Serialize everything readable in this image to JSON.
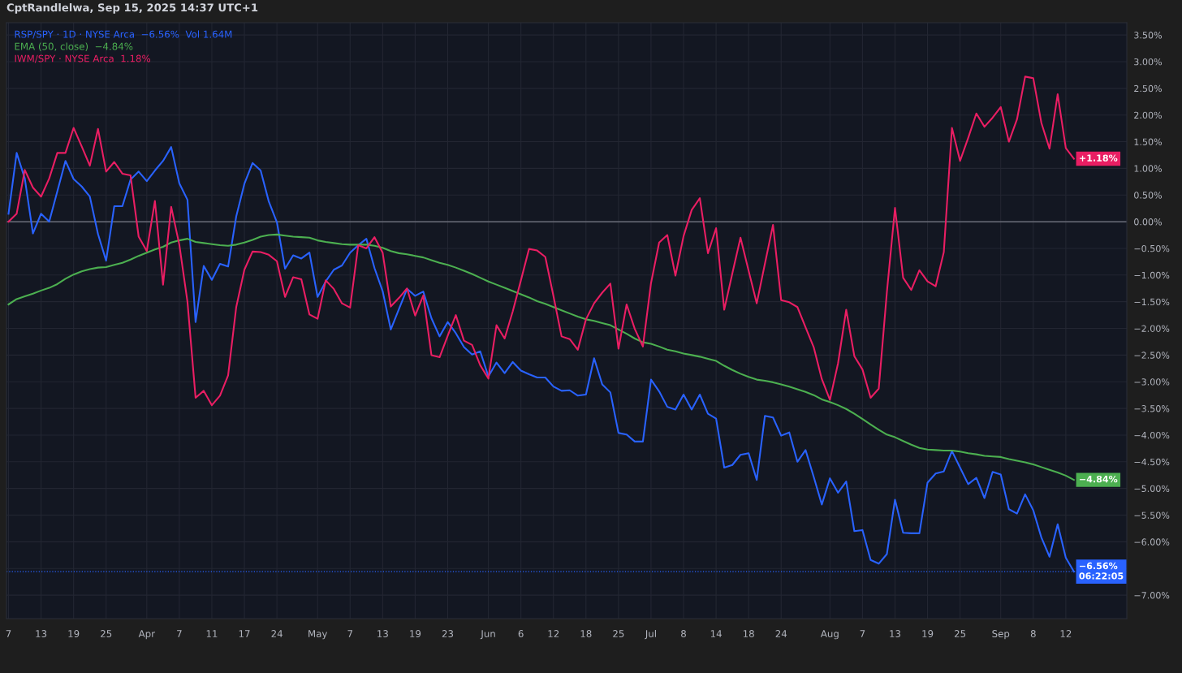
{
  "chart_data": {
    "type": "line",
    "title": "CptRandlelwa, Sep 15, 2025 14:37 UTC+1",
    "categories": [
      "7",
      null,
      null,
      null,
      "13",
      null,
      null,
      null,
      "19",
      null,
      null,
      null,
      "25",
      null,
      null,
      null,
      null,
      "Apr",
      null,
      null,
      null,
      "7",
      null,
      null,
      null,
      "11",
      null,
      null,
      null,
      "17",
      null,
      null,
      null,
      "24",
      null,
      null,
      null,
      null,
      "May",
      null,
      null,
      null,
      "7",
      null,
      null,
      null,
      "13",
      null,
      null,
      null,
      "19",
      null,
      null,
      null,
      "23",
      null,
      null,
      null,
      null,
      "Jun",
      null,
      null,
      null,
      "6",
      null,
      null,
      null,
      "12",
      null,
      null,
      null,
      "18",
      null,
      null,
      null,
      "25",
      null,
      null,
      null,
      "Jul",
      null,
      null,
      null,
      "8",
      null,
      null,
      null,
      "14",
      null,
      null,
      null,
      "18",
      null,
      null,
      null,
      "24",
      null,
      null,
      null,
      null,
      null,
      "Aug",
      null,
      null,
      null,
      "7",
      null,
      null,
      null,
      "13",
      null,
      null,
      null,
      "19",
      null,
      null,
      null,
      "25",
      null,
      null,
      null,
      null,
      "Sep",
      null,
      null,
      null,
      "8",
      null,
      null,
      null,
      "12",
      null
    ],
    "ylim": [
      -7.44,
      3.73
    ],
    "yticks": [
      {
        "value": 3.5,
        "label": "3.50%"
      },
      {
        "value": 3.0,
        "label": "3.00%"
      },
      {
        "value": 2.5,
        "label": "2.50%"
      },
      {
        "value": 2.0,
        "label": "2.00%"
      },
      {
        "value": 1.5,
        "label": "1.50%"
      },
      {
        "value": 1.0,
        "label": "1.00%"
      },
      {
        "value": 0.5,
        "label": "0.50%"
      },
      {
        "value": 0,
        "label": "0.00%"
      },
      {
        "value": -0.5,
        "label": "−0.50%"
      },
      {
        "value": -1.0,
        "label": "−1.00%"
      },
      {
        "value": -1.5,
        "label": "−1.50%"
      },
      {
        "value": -2.0,
        "label": "−2.00%"
      },
      {
        "value": -2.5,
        "label": "−2.50%"
      },
      {
        "value": -3.0,
        "label": "−3.00%"
      },
      {
        "value": -3.5,
        "label": "−3.50%"
      },
      {
        "value": -4.0,
        "label": "−4.00%"
      },
      {
        "value": -4.5,
        "label": "−4.50%"
      },
      {
        "value": -5.0,
        "label": "−5.00%"
      },
      {
        "value": -5.5,
        "label": "−5.50%"
      },
      {
        "value": -6.0,
        "label": "−6.00%"
      },
      {
        "value": -6.5,
        "label": null
      },
      {
        "value": -7.0,
        "label": "−7.00%"
      }
    ],
    "grid": true,
    "legend": "top left",
    "marker": "none",
    "line_style": "solid",
    "ref_lines": [
      {
        "axis": "y",
        "value": 0,
        "color": "#787b86",
        "line_style": "solid"
      },
      {
        "axis": "y",
        "value": -6.56,
        "color": "#2962ff",
        "line_style": "dotted"
      }
    ],
    "series": [
      {
        "name": "RSP/SPY · 1D · NYSE Arca  −6.56%  Vol 1.64M",
        "color": "#2962ff",
        "values": [
          0.15,
          1.29,
          0.81,
          -0.22,
          0.15,
          0.0,
          0.57,
          1.14,
          0.8,
          0.66,
          0.47,
          -0.23,
          -0.73,
          0.29,
          0.29,
          0.79,
          0.94,
          0.76,
          0.96,
          1.14,
          1.4,
          0.72,
          0.41,
          -1.88,
          -0.83,
          -1.09,
          -0.79,
          -0.84,
          0.1,
          0.71,
          1.1,
          0.96,
          0.38,
          -0.01,
          -0.88,
          -0.63,
          -0.69,
          -0.58,
          -1.41,
          -1.12,
          -0.9,
          -0.82,
          -0.58,
          -0.44,
          -0.32,
          -0.87,
          -1.3,
          -2.02,
          -1.64,
          -1.26,
          -1.39,
          -1.31,
          -1.81,
          -2.15,
          -1.88,
          -2.09,
          -2.35,
          -2.49,
          -2.43,
          -2.9,
          -2.64,
          -2.84,
          -2.63,
          -2.79,
          -2.86,
          -2.92,
          -2.92,
          -3.09,
          -3.17,
          -3.16,
          -3.26,
          -3.24,
          -2.56,
          -3.05,
          -3.2,
          -3.96,
          -3.99,
          -4.12,
          -4.12,
          -2.96,
          -3.18,
          -3.47,
          -3.52,
          -3.24,
          -3.52,
          -3.24,
          -3.6,
          -3.69,
          -4.61,
          -4.56,
          -4.37,
          -4.34,
          -4.84,
          -3.64,
          -3.67,
          -4.01,
          -3.95,
          -4.5,
          -4.28,
          -4.78,
          -5.3,
          -4.81,
          -5.08,
          -4.87,
          -5.8,
          -5.78,
          -6.34,
          -6.41,
          -6.23,
          -5.21,
          -5.83,
          -5.84,
          -5.84,
          -4.89,
          -4.72,
          -4.68,
          -4.3,
          -4.61,
          -4.92,
          -4.8,
          -5.18,
          -4.69,
          -4.74,
          -5.39,
          -5.47,
          -5.11,
          -5.41,
          -5.92,
          -6.28,
          -5.67,
          -6.3,
          -6.56
        ],
        "value_labels": [
          null,
          null,
          null,
          null,
          null,
          null,
          null,
          null,
          null,
          null,
          null,
          null,
          null,
          null,
          null,
          null,
          null,
          null,
          null,
          null,
          null,
          null,
          null,
          null,
          null,
          null,
          null,
          null,
          null,
          null,
          null,
          null,
          null,
          null,
          null,
          null,
          null,
          null,
          null,
          null,
          null,
          null,
          null,
          null,
          null,
          null,
          null,
          null,
          null,
          null,
          null,
          null,
          null,
          null,
          null,
          null,
          null,
          null,
          null,
          null,
          null,
          null,
          null,
          null,
          null,
          null,
          null,
          null,
          null,
          null,
          null,
          null,
          null,
          null,
          null,
          null,
          null,
          null,
          null,
          null,
          null,
          null,
          null,
          null,
          null,
          null,
          null,
          null,
          null,
          null,
          null,
          null,
          null,
          null,
          null,
          null,
          null,
          null,
          null,
          null,
          null,
          null,
          null,
          null,
          null,
          null,
          null,
          null,
          null,
          null,
          null,
          null,
          null,
          null,
          null,
          null,
          null,
          null,
          null,
          null,
          null,
          null,
          null,
          null,
          null,
          null,
          null,
          null,
          null,
          null,
          null,
          "−6.56%\n06:22:05"
        ]
      },
      {
        "name": "EMA (50, close)  −4.84%",
        "color": "#4caf50",
        "values": [
          -1.55,
          -1.45,
          -1.4,
          -1.35,
          -1.29,
          -1.24,
          -1.17,
          -1.07,
          -0.99,
          -0.93,
          -0.89,
          -0.86,
          -0.85,
          -0.81,
          -0.77,
          -0.71,
          -0.64,
          -0.58,
          -0.52,
          -0.47,
          -0.39,
          -0.35,
          -0.32,
          -0.38,
          -0.4,
          -0.42,
          -0.44,
          -0.45,
          -0.43,
          -0.39,
          -0.34,
          -0.28,
          -0.25,
          -0.24,
          -0.26,
          -0.28,
          -0.29,
          -0.3,
          -0.35,
          -0.38,
          -0.4,
          -0.42,
          -0.43,
          -0.43,
          -0.43,
          -0.45,
          -0.49,
          -0.55,
          -0.59,
          -0.61,
          -0.64,
          -0.67,
          -0.72,
          -0.77,
          -0.81,
          -0.86,
          -0.92,
          -0.98,
          -1.05,
          -1.12,
          -1.18,
          -1.24,
          -1.3,
          -1.36,
          -1.42,
          -1.49,
          -1.54,
          -1.6,
          -1.66,
          -1.72,
          -1.78,
          -1.83,
          -1.86,
          -1.9,
          -1.94,
          -2.02,
          -2.1,
          -2.19,
          -2.26,
          -2.29,
          -2.34,
          -2.4,
          -2.43,
          -2.47,
          -2.5,
          -2.53,
          -2.57,
          -2.61,
          -2.7,
          -2.78,
          -2.85,
          -2.91,
          -2.96,
          -2.98,
          -3.01,
          -3.05,
          -3.09,
          -3.14,
          -3.19,
          -3.25,
          -3.33,
          -3.38,
          -3.44,
          -3.51,
          -3.6,
          -3.7,
          -3.8,
          -3.9,
          -3.99,
          -4.04,
          -4.11,
          -4.18,
          -4.24,
          -4.27,
          -4.28,
          -4.29,
          -4.29,
          -4.31,
          -4.34,
          -4.36,
          -4.39,
          -4.4,
          -4.41,
          -4.45,
          -4.48,
          -4.51,
          -4.55,
          -4.6,
          -4.65,
          -4.7,
          -4.76,
          -4.84
        ],
        "value_labels": [
          null,
          null,
          null,
          null,
          null,
          null,
          null,
          null,
          null,
          null,
          null,
          null,
          null,
          null,
          null,
          null,
          null,
          null,
          null,
          null,
          null,
          null,
          null,
          null,
          null,
          null,
          null,
          null,
          null,
          null,
          null,
          null,
          null,
          null,
          null,
          null,
          null,
          null,
          null,
          null,
          null,
          null,
          null,
          null,
          null,
          null,
          null,
          null,
          null,
          null,
          null,
          null,
          null,
          null,
          null,
          null,
          null,
          null,
          null,
          null,
          null,
          null,
          null,
          null,
          null,
          null,
          null,
          null,
          null,
          null,
          null,
          null,
          null,
          null,
          null,
          null,
          null,
          null,
          null,
          null,
          null,
          null,
          null,
          null,
          null,
          null,
          null,
          null,
          null,
          null,
          null,
          null,
          null,
          null,
          null,
          null,
          null,
          null,
          null,
          null,
          null,
          null,
          null,
          null,
          null,
          null,
          null,
          null,
          null,
          null,
          null,
          null,
          null,
          null,
          null,
          null,
          null,
          null,
          null,
          null,
          null,
          null,
          null,
          null,
          null,
          null,
          null,
          null,
          null,
          null,
          null,
          "−4.84%"
        ]
      },
      {
        "name": "IWM/SPY · NYSE Arca  1.18%",
        "color": "#e91e63",
        "values": [
          0.0,
          0.15,
          0.97,
          0.64,
          0.47,
          0.81,
          1.29,
          1.29,
          1.76,
          1.41,
          1.05,
          1.74,
          0.94,
          1.12,
          0.9,
          0.87,
          -0.28,
          -0.55,
          0.39,
          -1.18,
          0.28,
          -0.43,
          -1.5,
          -3.3,
          -3.17,
          -3.44,
          -3.26,
          -2.88,
          -1.6,
          -0.9,
          -0.56,
          -0.57,
          -0.62,
          -0.74,
          -1.41,
          -1.04,
          -1.08,
          -1.74,
          -1.82,
          -1.1,
          -1.26,
          -1.53,
          -1.61,
          -0.44,
          -0.5,
          -0.29,
          -0.58,
          -1.59,
          -1.43,
          -1.25,
          -1.76,
          -1.38,
          -2.5,
          -2.54,
          -2.14,
          -1.75,
          -2.23,
          -2.31,
          -2.69,
          -2.94,
          -1.94,
          -2.19,
          -1.68,
          -1.1,
          -0.51,
          -0.54,
          -0.66,
          -1.39,
          -2.15,
          -2.2,
          -2.4,
          -1.83,
          -1.53,
          -1.33,
          -1.16,
          -2.38,
          -1.55,
          -2.01,
          -2.34,
          -1.15,
          -0.39,
          -0.25,
          -1.01,
          -0.27,
          0.22,
          0.44,
          -0.59,
          -0.12,
          -1.65,
          -0.97,
          -0.3,
          -0.92,
          -1.53,
          -0.79,
          -0.06,
          -1.47,
          -1.51,
          -1.6,
          -1.98,
          -2.35,
          -2.95,
          -3.34,
          -2.65,
          -1.65,
          -2.52,
          -2.77,
          -3.3,
          -3.13,
          -1.32,
          0.26,
          -1.05,
          -1.28,
          -0.91,
          -1.12,
          -1.21,
          -0.57,
          1.76,
          1.14,
          1.57,
          2.03,
          1.78,
          1.95,
          2.15,
          1.5,
          1.92,
          2.72,
          2.69,
          1.85,
          1.37,
          2.39,
          1.38,
          1.18
        ],
        "value_labels": [
          null,
          null,
          null,
          null,
          null,
          null,
          null,
          null,
          null,
          null,
          null,
          null,
          null,
          null,
          null,
          null,
          null,
          null,
          null,
          null,
          null,
          null,
          null,
          null,
          null,
          null,
          null,
          null,
          null,
          null,
          null,
          null,
          null,
          null,
          null,
          null,
          null,
          null,
          null,
          null,
          null,
          null,
          null,
          null,
          null,
          null,
          null,
          null,
          null,
          null,
          null,
          null,
          null,
          null,
          null,
          null,
          null,
          null,
          null,
          null,
          null,
          null,
          null,
          null,
          null,
          null,
          null,
          null,
          null,
          null,
          null,
          null,
          null,
          null,
          null,
          null,
          null,
          null,
          null,
          null,
          null,
          null,
          null,
          null,
          null,
          null,
          null,
          null,
          null,
          null,
          null,
          null,
          null,
          null,
          null,
          null,
          null,
          null,
          null,
          null,
          null,
          null,
          null,
          null,
          null,
          null,
          null,
          null,
          null,
          null,
          null,
          null,
          null,
          null,
          null,
          null,
          null,
          null,
          null,
          null,
          null,
          null,
          null,
          null,
          null,
          null,
          null,
          null,
          null,
          null,
          null,
          "+1.18%"
        ]
      }
    ]
  }
}
